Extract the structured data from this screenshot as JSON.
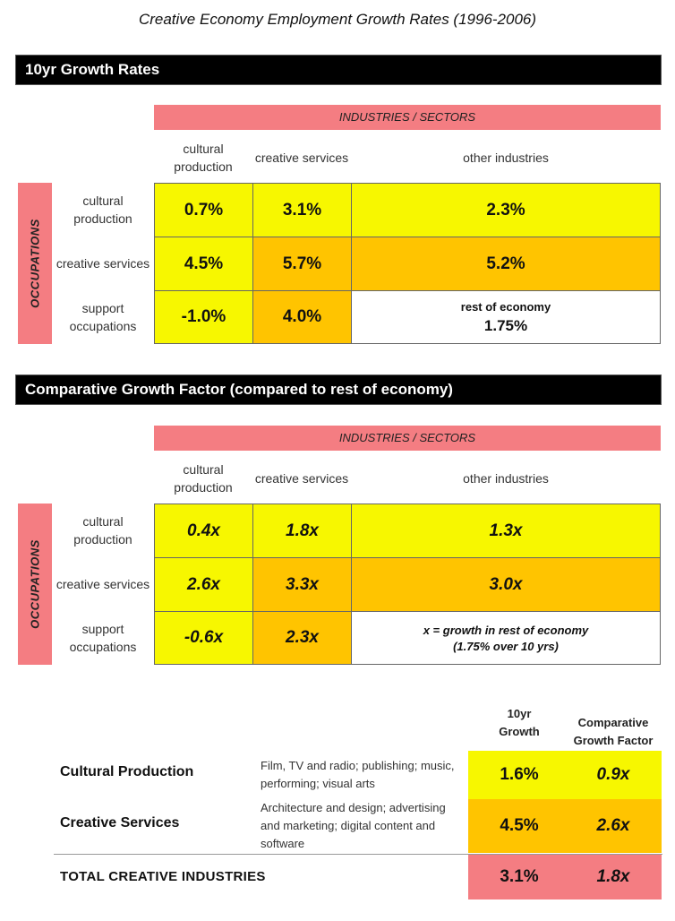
{
  "title": "Creative Economy Employment Growth Rates (1996-2006)",
  "colors": {
    "pink": "#f47d82",
    "yellow": "#f7f700",
    "orange": "#ffc400",
    "black": "#000000"
  },
  "section1": {
    "heading": "10yr Growth Rates",
    "industries_header": "INDUSTRIES / SECTORS",
    "occupations_label": "OCCUPATIONS",
    "columns": [
      "cultural production",
      "creative services",
      "other industries"
    ],
    "rows": [
      "cultural production",
      "creative services",
      "support occupations"
    ],
    "values": [
      [
        "0.7%",
        "3.1%",
        "2.3%"
      ],
      [
        "4.5%",
        "5.7%",
        "5.2%"
      ],
      [
        "-1.0%",
        "4.0%",
        ""
      ]
    ],
    "note_label": "rest of economy",
    "note_value": "1.75%"
  },
  "section2": {
    "heading": "Comparative Growth Factor (compared to rest of economy)",
    "industries_header": "INDUSTRIES / SECTORS",
    "occupations_label": "OCCUPATIONS",
    "columns": [
      "cultural production",
      "creative services",
      "other industries"
    ],
    "rows": [
      "cultural production",
      "creative services",
      "support occupations"
    ],
    "values": [
      [
        "0.4x",
        "1.8x",
        "1.3x"
      ],
      [
        "2.6x",
        "3.3x",
        "3.0x"
      ],
      [
        "-0.6x",
        "2.3x",
        ""
      ]
    ],
    "note_line1": "x = growth in rest of economy",
    "note_line2": "(1.75% over 10 yrs)"
  },
  "summary": {
    "col1_header": "10yr Growth",
    "col2_header": "Comparative Growth Factor",
    "rows": [
      {
        "name": "Cultural Production",
        "desc": "Film, TV and radio; publishing; music, performing; visual arts",
        "growth": "1.6%",
        "factor": "0.9x"
      },
      {
        "name": "Creative Services",
        "desc": "Architecture and design; advertising and marketing; digital content and software",
        "growth": "4.5%",
        "factor": "2.6x"
      }
    ],
    "total": {
      "name": "TOTAL CREATIVE INDUSTRIES",
      "growth": "3.1%",
      "factor": "1.8x"
    }
  },
  "chart_data": [
    {
      "type": "table",
      "title": "10yr Growth Rates",
      "column_group": "INDUSTRIES / SECTORS",
      "row_group": "OCCUPATIONS",
      "columns": [
        "cultural production",
        "creative services",
        "other industries"
      ],
      "rows": [
        "cultural production",
        "creative services",
        "support occupations"
      ],
      "values": [
        [
          0.7,
          3.1,
          2.3
        ],
        [
          4.5,
          5.7,
          5.2
        ],
        [
          -1.0,
          4.0,
          1.75
        ]
      ],
      "unit": "%"
    },
    {
      "type": "table",
      "title": "Comparative Growth Factor (compared to rest of economy)",
      "column_group": "INDUSTRIES / SECTORS",
      "row_group": "OCCUPATIONS",
      "columns": [
        "cultural production",
        "creative services",
        "other industries"
      ],
      "rows": [
        "cultural production",
        "creative services",
        "support occupations"
      ],
      "values": [
        [
          0.4,
          1.8,
          1.3
        ],
        [
          2.6,
          3.3,
          3.0
        ],
        [
          -0.6,
          2.3,
          null
        ]
      ],
      "unit": "x"
    },
    {
      "type": "table",
      "columns": [
        "10yr Growth",
        "Comparative Growth Factor"
      ],
      "rows": [
        "Cultural Production",
        "Creative Services",
        "TOTAL CREATIVE INDUSTRIES"
      ],
      "values": [
        [
          1.6,
          0.9
        ],
        [
          4.5,
          2.6
        ],
        [
          3.1,
          1.8
        ]
      ]
    }
  ]
}
